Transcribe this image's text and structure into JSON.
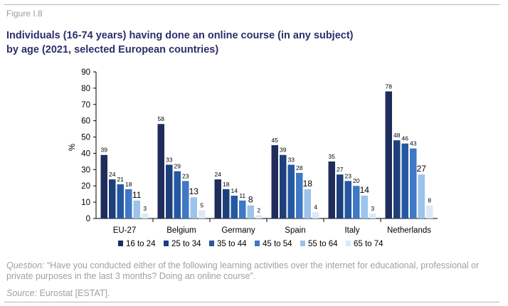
{
  "figure_label": "Figure I.8",
  "title": "Individuals (16-74 years) having done an online course (in any subject)\nby age (2021, selected European countries)",
  "chart_data": {
    "type": "bar",
    "categories": [
      "EU-27",
      "Belgium",
      "Germany",
      "Spain",
      "Italy",
      "Netherlands"
    ],
    "ylabel": "%",
    "xlabel": "",
    "ylim": [
      0,
      90
    ],
    "yticks": [
      0,
      10,
      20,
      30,
      40,
      50,
      60,
      70,
      80,
      90
    ],
    "grid": false,
    "legend_position": "bottom",
    "series": [
      {
        "name": "16 to 24",
        "color": "#1f2d5c",
        "values": [
          39,
          58,
          24,
          45,
          35,
          78
        ]
      },
      {
        "name": "25 to 34",
        "color": "#1d3f7a",
        "values": [
          24,
          33,
          18,
          39,
          27,
          48
        ]
      },
      {
        "name": "35 to 44",
        "color": "#2558a3",
        "values": [
          21,
          29,
          14,
          33,
          23,
          46
        ]
      },
      {
        "name": "45 to 54",
        "color": "#3f78c4",
        "values": [
          18,
          23,
          11,
          28,
          20,
          43
        ]
      },
      {
        "name": "55 to 64",
        "color": "#9cc3ea",
        "values": [
          11,
          13,
          8,
          18,
          14,
          27
        ]
      },
      {
        "name": "65 to 74",
        "color": "#dce9f7",
        "values": [
          3,
          5,
          2,
          4,
          3,
          8
        ]
      }
    ]
  },
  "footnote": {
    "question_label": "Question:",
    "question_text": "“Have you conducted either of the following learning activities over the internet for educational, professional or private purposes in the last 3 months? Doing an online course”.",
    "source_label": "Source:",
    "source_text": "Eurostat [ESTAT]."
  }
}
